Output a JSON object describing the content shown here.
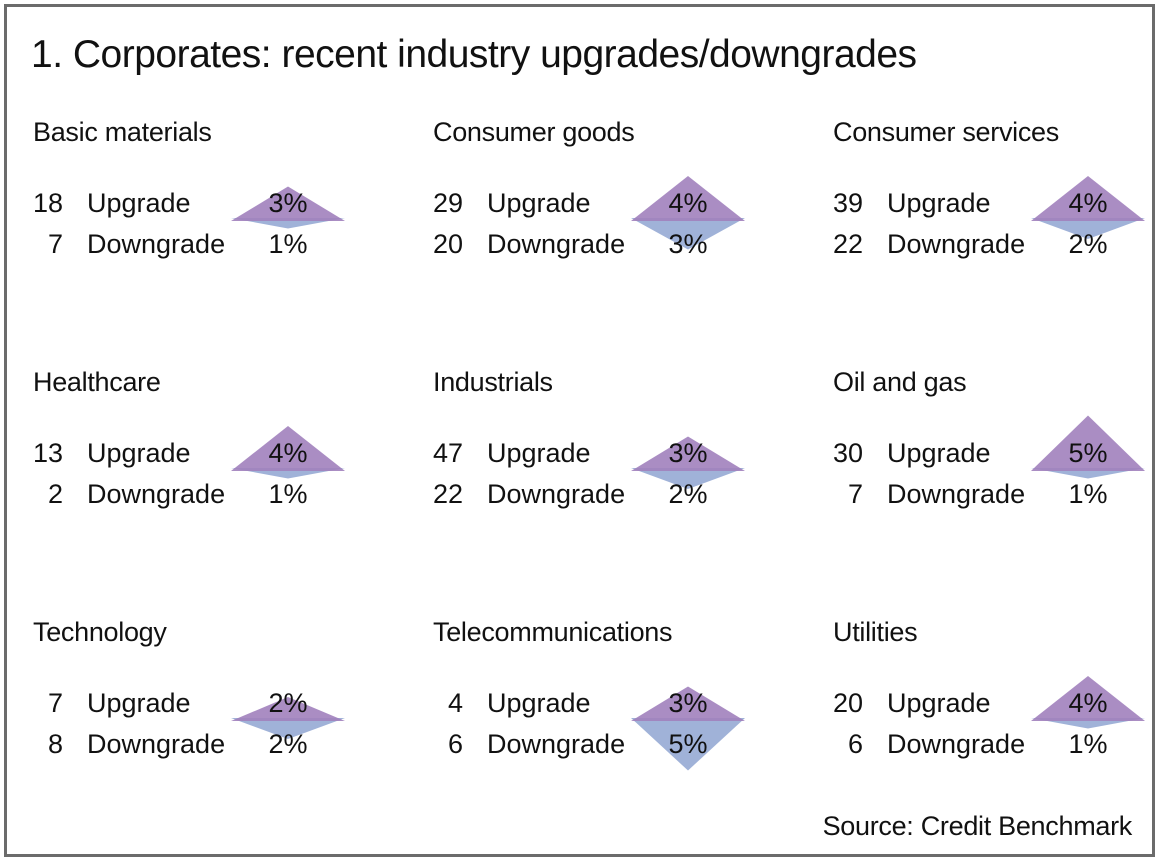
{
  "title": "1. Corporates: recent industry upgrades/downgrades",
  "source": "Source: Credit Benchmark",
  "labels": {
    "upgrade": "Upgrade",
    "downgrade": "Downgrade"
  },
  "colors": {
    "upgrade_triangle": "#A181BC",
    "downgrade_triangle": "#9BAED6",
    "frame_border": "#6B6B6B",
    "text": "#111111"
  },
  "chart_data": {
    "type": "table",
    "title": "1. Corporates: recent industry upgrades/downgrades",
    "source": "Source: Credit Benchmark",
    "columns": [
      "industry",
      "upgrade_count",
      "upgrade_pct",
      "downgrade_count",
      "downgrade_pct"
    ],
    "glyph_note": "Each panel shows a diamond: purple up-triangle height = upgrade %, blue down-triangle height = downgrade %",
    "panels": [
      {
        "industry": "Basic materials",
        "upgrade_count": "18",
        "upgrade_pct_value": 3,
        "upgrade_pct": "3%",
        "downgrade_count": "7",
        "downgrade_pct_value": 1,
        "downgrade_pct": "1%"
      },
      {
        "industry": "Consumer goods",
        "upgrade_count": "29",
        "upgrade_pct_value": 4,
        "upgrade_pct": "4%",
        "downgrade_count": "20",
        "downgrade_pct_value": 3,
        "downgrade_pct": "3%"
      },
      {
        "industry": "Consumer services",
        "upgrade_count": "39",
        "upgrade_pct_value": 4,
        "upgrade_pct": "4%",
        "downgrade_count": "22",
        "downgrade_pct_value": 2,
        "downgrade_pct": "2%"
      },
      {
        "industry": "Healthcare",
        "upgrade_count": "13",
        "upgrade_pct_value": 4,
        "upgrade_pct": "4%",
        "downgrade_count": "2",
        "downgrade_pct_value": 1,
        "downgrade_pct": "1%"
      },
      {
        "industry": "Industrials",
        "upgrade_count": "47",
        "upgrade_pct_value": 3,
        "upgrade_pct": "3%",
        "downgrade_count": "22",
        "downgrade_pct_value": 2,
        "downgrade_pct": "2%"
      },
      {
        "industry": "Oil and gas",
        "upgrade_count": "30",
        "upgrade_pct_value": 5,
        "upgrade_pct": "5%",
        "downgrade_count": "7",
        "downgrade_pct_value": 1,
        "downgrade_pct": "1%"
      },
      {
        "industry": "Technology",
        "upgrade_count": "7",
        "upgrade_pct_value": 2,
        "upgrade_pct": "2%",
        "downgrade_count": "8",
        "downgrade_pct_value": 2,
        "downgrade_pct": "2%"
      },
      {
        "industry": "Telecommunications",
        "upgrade_count": "4",
        "upgrade_pct_value": 3,
        "upgrade_pct": "3%",
        "downgrade_count": "6",
        "downgrade_pct_value": 5,
        "downgrade_pct": "5%"
      },
      {
        "industry": "Utilities",
        "upgrade_count": "20",
        "upgrade_pct_value": 4,
        "upgrade_pct": "4%",
        "downgrade_count": "6",
        "downgrade_pct_value": 1,
        "downgrade_pct": "1%"
      }
    ]
  }
}
